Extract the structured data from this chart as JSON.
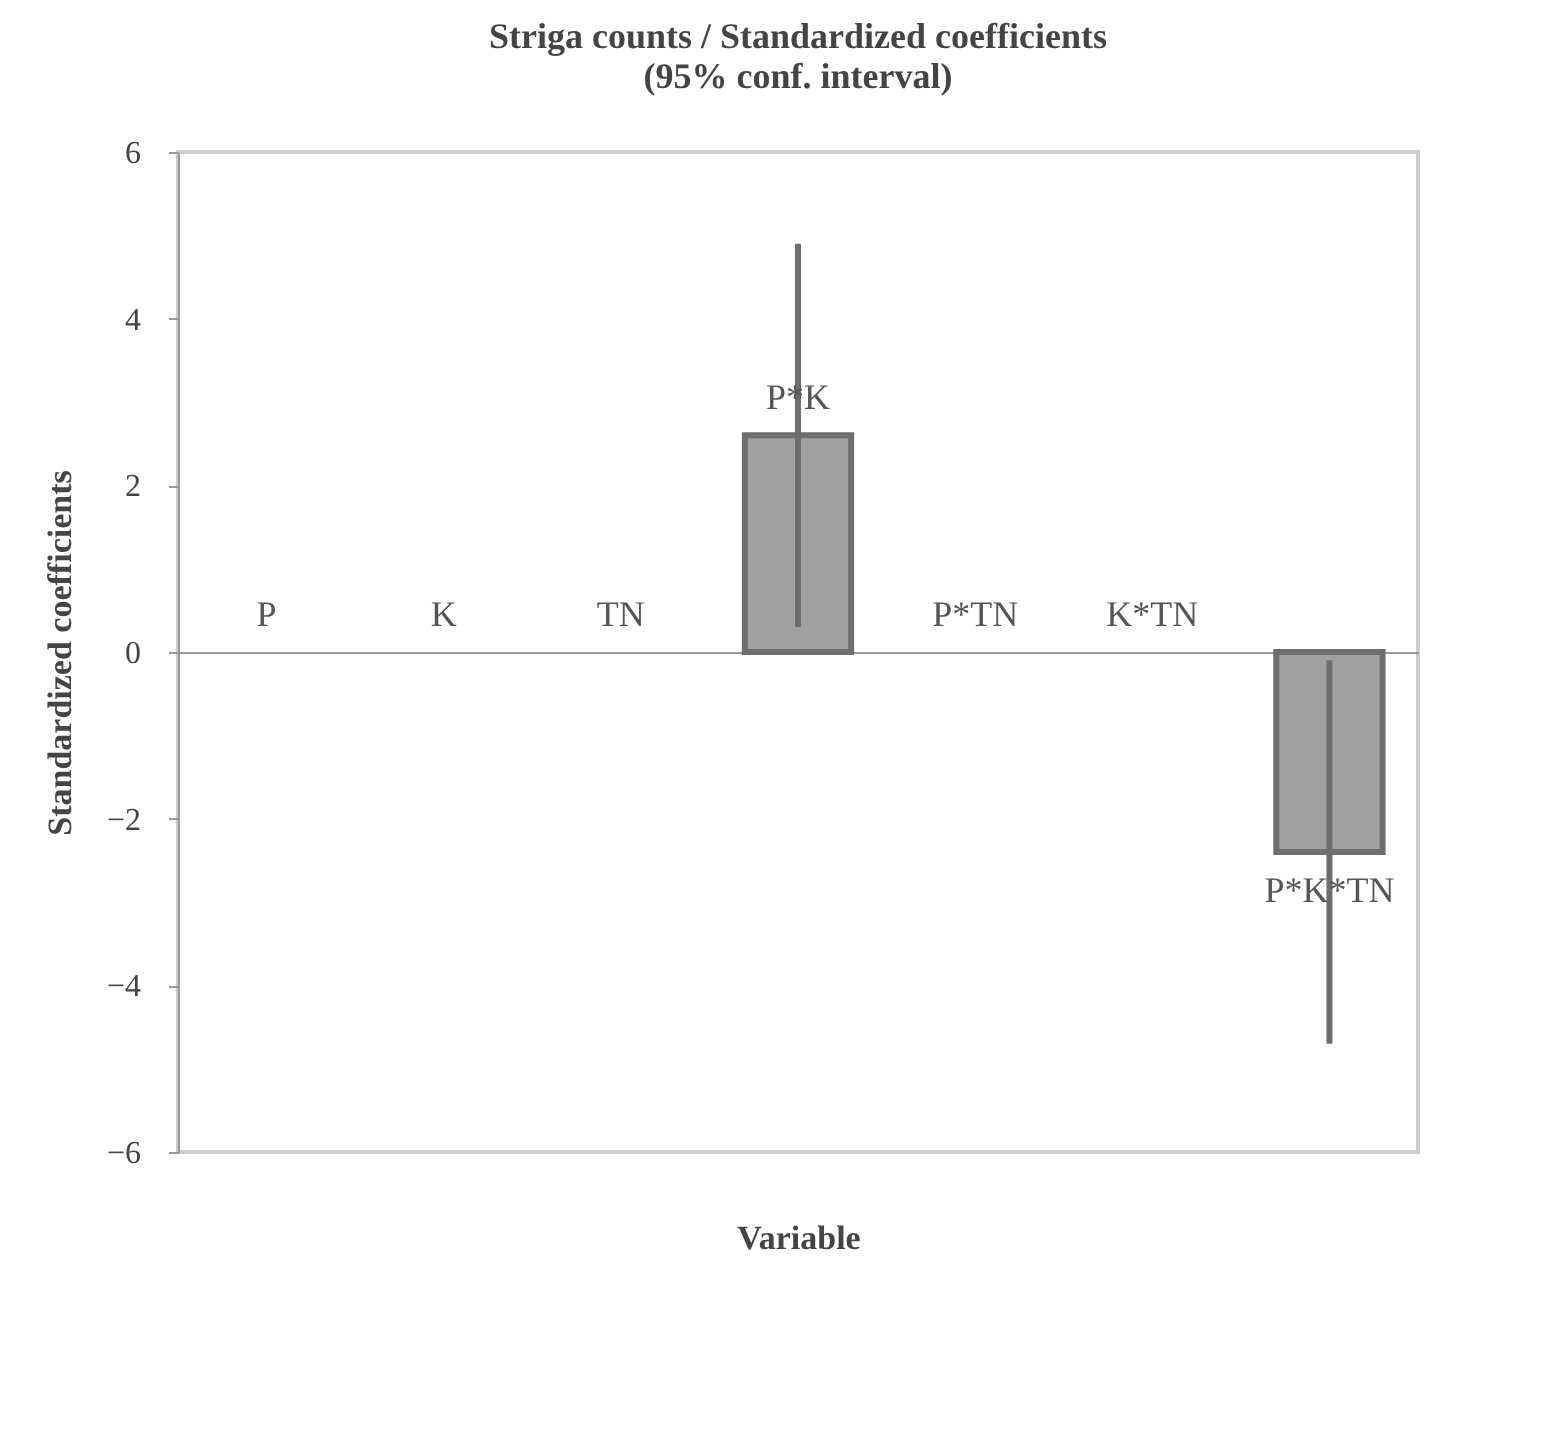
{
  "chart_data": {
    "type": "bar",
    "title": "Striga counts / Standardized coefficients\n(95% conf. interval)",
    "xlabel": "Variable",
    "ylabel": "Standardized coefficients",
    "categories": [
      "P",
      "K",
      "TN",
      "P*K",
      "P*TN",
      "K*TN",
      "P*K*TN"
    ],
    "values": [
      0,
      0,
      0,
      2.6,
      0,
      0,
      -2.4
    ],
    "errors": [
      null,
      null,
      null,
      2.3,
      null,
      null,
      2.3
    ],
    "color": "#a0a0a0",
    "ylim": [
      -6,
      6
    ],
    "yticks": [
      -6,
      -4,
      -2,
      0,
      2,
      4,
      6
    ],
    "grid": false,
    "tick_labels": "y"
  }
}
